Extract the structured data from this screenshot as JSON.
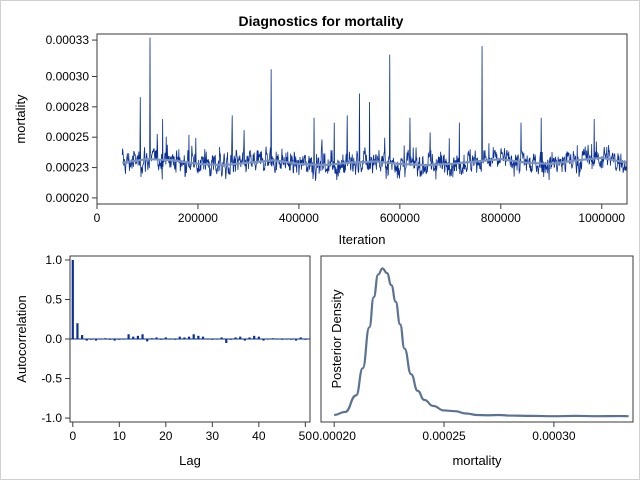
{
  "title": "Diagnostics for mortality",
  "colors": {
    "trace": "#0a2f96",
    "smooth": "#7a93bd",
    "acf": "#0a2f96",
    "density": "#5b7391",
    "frame": "#3a3a3a"
  },
  "chart_data": [
    {
      "type": "line",
      "name": "trace",
      "xlabel": "Iteration",
      "ylabel": "mortality",
      "xlim": [
        0,
        1050000
      ],
      "ylim": [
        0.000195,
        0.000335
      ],
      "xticks": [
        0,
        200000,
        400000,
        600000,
        800000,
        1000000
      ],
      "xtick_labels": [
        "0",
        "200000",
        "400000",
        "600000",
        "800000",
        "1000000"
      ],
      "yticks": [
        0.0002,
        0.000225,
        0.00025,
        0.000275,
        0.0003,
        0.00033
      ],
      "ytick_labels": [
        "0.00020",
        "0.00023",
        "0.00025",
        "0.00028",
        "0.00030",
        "0.00033"
      ],
      "x_start": 50000,
      "x_end": 1050000,
      "baseline_mean": 0.000228,
      "spikes": [
        {
          "x": 86000,
          "y": 0.000283
        },
        {
          "x": 105000,
          "y": 0.000332
        },
        {
          "x": 130000,
          "y": 0.000265
        },
        {
          "x": 182000,
          "y": 0.000252
        },
        {
          "x": 268000,
          "y": 0.000268
        },
        {
          "x": 345000,
          "y": 0.000306
        },
        {
          "x": 430000,
          "y": 0.000266
        },
        {
          "x": 470000,
          "y": 0.000262
        },
        {
          "x": 496000,
          "y": 0.000268
        },
        {
          "x": 520000,
          "y": 0.000286
        },
        {
          "x": 540000,
          "y": 0.000279
        },
        {
          "x": 580000,
          "y": 0.000318
        },
        {
          "x": 620000,
          "y": 0.000266
        },
        {
          "x": 660000,
          "y": 0.000254
        },
        {
          "x": 718000,
          "y": 0.000262
        },
        {
          "x": 763000,
          "y": 0.000325
        },
        {
          "x": 840000,
          "y": 0.000262
        },
        {
          "x": 880000,
          "y": 0.000266
        },
        {
          "x": 985000,
          "y": 0.000265
        }
      ],
      "smooth": {
        "x": [
          50000,
          100000,
          150000,
          200000,
          250000,
          300000,
          350000,
          400000,
          450000,
          500000,
          550000,
          600000,
          650000,
          700000,
          750000,
          800000,
          850000,
          900000,
          950000,
          1000000,
          1050000
        ],
        "y": [
          0.000229,
          0.000232,
          0.000231,
          0.000228,
          0.000227,
          0.000229,
          0.000231,
          0.000228,
          0.000227,
          0.000229,
          0.00023,
          0.000228,
          0.000227,
          0.000228,
          0.00023,
          0.000232,
          0.000229,
          0.000228,
          0.000231,
          0.000233,
          0.000229
        ]
      }
    },
    {
      "type": "bar",
      "name": "autocorrelation",
      "xlabel": "Lag",
      "ylabel": "Autocorrelation",
      "xlim": [
        -0.6,
        51
      ],
      "ylim": [
        -1.05,
        1.05
      ],
      "xticks": [
        0,
        10,
        20,
        30,
        40,
        50
      ],
      "xtick_labels": [
        "0",
        "10",
        "20",
        "30",
        "40",
        "50"
      ],
      "yticks": [
        -1.0,
        -0.5,
        0.0,
        0.5,
        1.0
      ],
      "ytick_labels": [
        "-1.0",
        "-0.5",
        "0.0",
        "0.5",
        "1.0"
      ],
      "lags": [
        0,
        1,
        2,
        3,
        4,
        5,
        6,
        7,
        8,
        9,
        10,
        11,
        12,
        13,
        14,
        15,
        16,
        17,
        18,
        19,
        20,
        21,
        22,
        23,
        24,
        25,
        26,
        27,
        28,
        29,
        30,
        31,
        32,
        33,
        34,
        35,
        36,
        37,
        38,
        39,
        40,
        41,
        42,
        43,
        44,
        45,
        46,
        47,
        48,
        49,
        50
      ],
      "values": [
        1.0,
        0.2,
        0.05,
        -0.02,
        -0.01,
        -0.02,
        0.0,
        0.01,
        -0.01,
        -0.02,
        -0.01,
        0.0,
        0.06,
        0.03,
        0.04,
        0.06,
        -0.03,
        0.01,
        0.02,
        -0.01,
        0.02,
        0.0,
        -0.01,
        0.03,
        0.02,
        0.03,
        0.06,
        0.04,
        0.03,
        0.0,
        -0.01,
        0.0,
        0.02,
        -0.05,
        -0.01,
        0.02,
        0.03,
        -0.02,
        0.02,
        0.04,
        0.03,
        -0.02,
        0.0,
        0.01,
        0.0,
        -0.01,
        0.0,
        -0.01,
        -0.02,
        0.02,
        -0.01
      ]
    },
    {
      "type": "line",
      "name": "posterior-density",
      "xlabel": "mortality",
      "ylabel": "Posterior Density",
      "xlim": [
        0.000194,
        0.000336
      ],
      "ylim": [
        0,
        1.0
      ],
      "xticks": [
        0.0002,
        0.00025,
        0.0003
      ],
      "xtick_labels": [
        "0.00020",
        "0.00025",
        "0.00030"
      ],
      "x": [
        0.0002,
        0.000205,
        0.00021,
        0.000213,
        0.000216,
        0.000218,
        0.00022,
        0.000222,
        0.000224,
        0.000226,
        0.000228,
        0.00023,
        0.000232,
        0.000235,
        0.000238,
        0.000241,
        0.000245,
        0.00025,
        0.000255,
        0.00026,
        0.000265,
        0.00027,
        0.000275,
        0.00028,
        0.00029,
        0.0003,
        0.00031,
        0.00032,
        0.00033,
        0.000334
      ],
      "y": [
        0.02,
        0.04,
        0.15,
        0.33,
        0.6,
        0.8,
        0.95,
        0.99,
        0.96,
        0.88,
        0.77,
        0.62,
        0.46,
        0.29,
        0.18,
        0.12,
        0.08,
        0.05,
        0.045,
        0.03,
        0.02,
        0.018,
        0.02,
        0.016,
        0.014,
        0.012,
        0.014,
        0.012,
        0.013,
        0.012
      ]
    }
  ]
}
